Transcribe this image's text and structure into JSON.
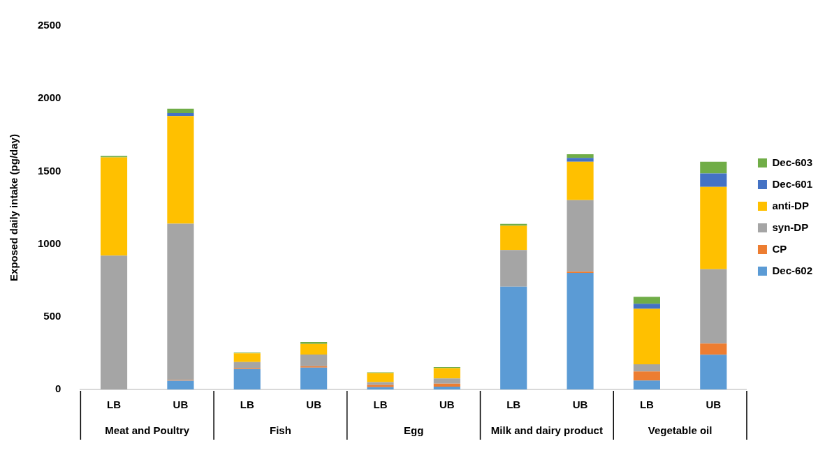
{
  "chart_data": {
    "type": "bar",
    "stacked": true,
    "ylabel": "Exposed daily intake (pg/day)",
    "categories": [
      "LB",
      "UB",
      "LB",
      "UB",
      "LB",
      "UB",
      "LB",
      "UB",
      "LB",
      "UB"
    ],
    "annotations": [
      "Meat and Poultry",
      "Fish",
      "Egg",
      "Milk and dairy product",
      "Vegetable oil"
    ],
    "ylim": [
      0,
      2500
    ],
    "yticks": [
      0,
      500,
      1000,
      1500,
      2000,
      2500
    ],
    "grid": false,
    "legend": "right",
    "series": [
      {
        "name": "Dec-602",
        "color": "#5b9bd5",
        "values": [
          null,
          60,
          140,
          150,
          16,
          19,
          707,
          801,
          61,
          239
        ]
      },
      {
        "name": "CP",
        "color": "#ed7d31",
        "values": [
          null,
          5,
          8,
          10,
          15,
          21,
          null,
          9,
          63,
          76
        ]
      },
      {
        "name": "syn-DP",
        "color": "#a5a5a5",
        "values": [
          920,
          1075,
          40,
          80,
          19,
          35,
          251,
          492,
          49,
          511
        ]
      },
      {
        "name": "anti-DP",
        "color": "#ffc000",
        "values": [
          675,
          740,
          60,
          73,
          63,
          71,
          167,
          264,
          381,
          567
        ]
      },
      {
        "name": "Dec-601",
        "color": "#4472c4",
        "values": [
          null,
          20,
          null,
          null,
          null,
          null,
          null,
          26,
          35,
          92
        ]
      },
      {
        "name": "Dec-603",
        "color": "#70ad47",
        "values": [
          10,
          30,
          5,
          13,
          5,
          8,
          13,
          25,
          48,
          81
        ]
      }
    ]
  }
}
